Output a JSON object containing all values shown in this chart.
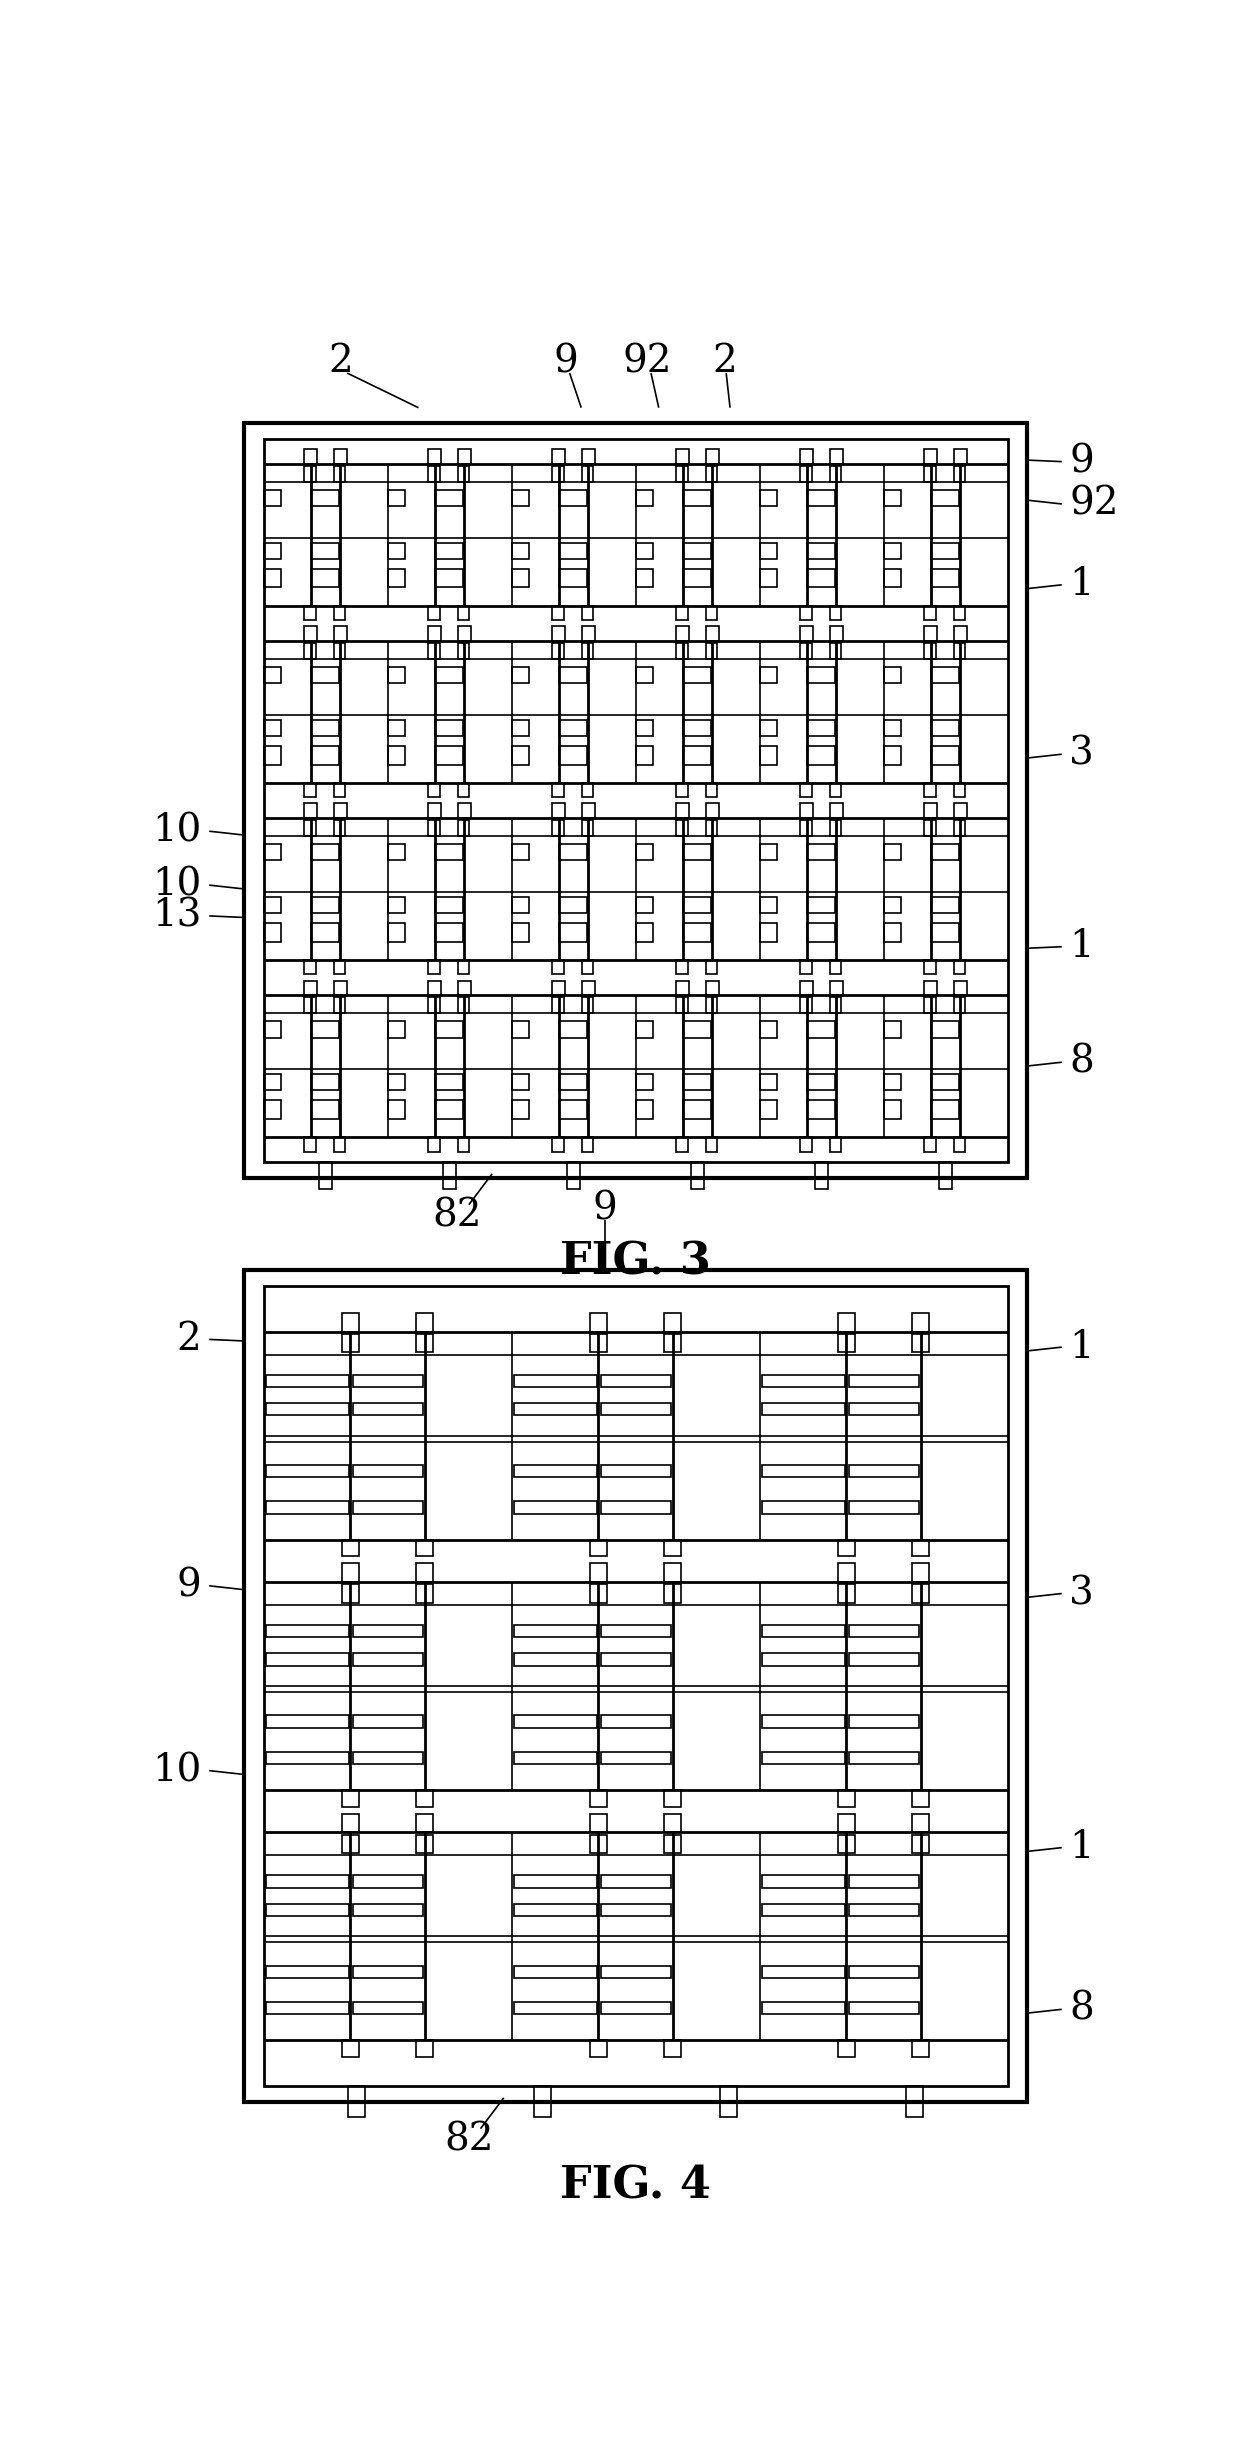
{
  "fig_width": 12.4,
  "fig_height": 24.48,
  "bg_color": "#ffffff",
  "line_color": "#000000"
}
